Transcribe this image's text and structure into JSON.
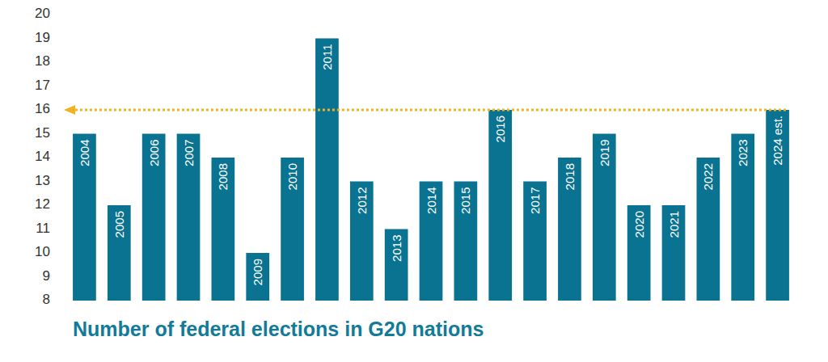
{
  "chart_data": {
    "type": "bar",
    "title": "Number of federal elections in G20 nations",
    "categories": [
      "2004",
      "2005",
      "2006",
      "2007",
      "2008",
      "2009",
      "2010",
      "2011",
      "2012",
      "2013",
      "2014",
      "2015",
      "2016",
      "2017",
      "2018",
      "2019",
      "2020",
      "2021",
      "2022",
      "2023",
      "2024 est."
    ],
    "values": [
      15,
      12,
      15,
      15,
      14,
      10,
      14,
      19,
      13,
      11,
      13,
      13,
      16,
      13,
      14,
      15,
      12,
      12,
      14,
      15,
      16
    ],
    "color": "#0a7391",
    "ylim": [
      8,
      20
    ],
    "yticks": [
      8,
      9,
      10,
      11,
      12,
      13,
      14,
      15,
      16,
      17,
      18,
      19,
      20
    ],
    "grid": false,
    "reference_line": {
      "value": 16,
      "color": "#f0b323"
    }
  }
}
